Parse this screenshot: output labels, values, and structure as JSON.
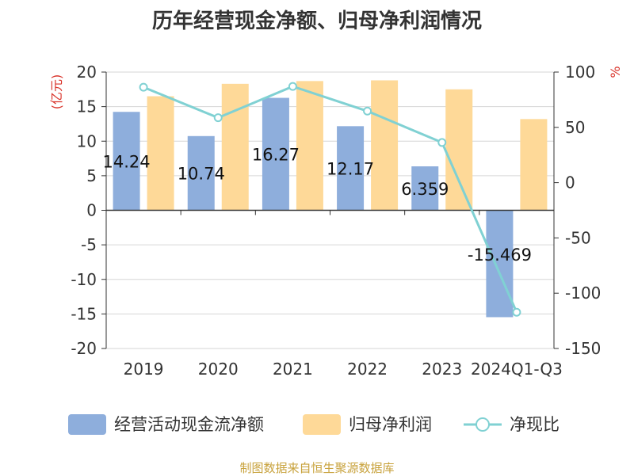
{
  "title": "历年经营现金净额、归母净利润情况",
  "source": "制图数据来自恒生聚源数据库",
  "chart_data": {
    "type": "bar",
    "categories": [
      "2019",
      "2020",
      "2021",
      "2022",
      "2023",
      "2024Q1-Q3"
    ],
    "series": [
      {
        "name": "经营活动现金流净额",
        "type": "bar",
        "axis": "left",
        "color": "#8eaedc",
        "values": [
          14.24,
          10.74,
          16.27,
          12.17,
          6.359,
          -15.469
        ]
      },
      {
        "name": "归母净利润",
        "type": "bar",
        "axis": "left",
        "color": "#fed998",
        "values": [
          16.5,
          18.3,
          18.7,
          18.8,
          17.5,
          13.2
        ]
      },
      {
        "name": "净现比",
        "type": "line",
        "axis": "right",
        "color": "#80d1d3",
        "values": [
          86.3,
          58.7,
          87.0,
          64.7,
          36.3,
          -117.2
        ]
      }
    ],
    "data_labels": [
      "14.24",
      "10.74",
      "16.27",
      "12.17",
      "6.359",
      "-15.469"
    ],
    "y_left": {
      "label": "(亿元)",
      "ylim": [
        -20,
        20
      ],
      "ticks": [
        20,
        15,
        10,
        5,
        0,
        -5,
        -10,
        -15,
        -20
      ]
    },
    "y_right": {
      "label": "%",
      "ylim": [
        -150,
        100
      ],
      "ticks": [
        100,
        50,
        0,
        -50,
        -100,
        -150
      ]
    },
    "grid": true,
    "legend": "bottom"
  }
}
